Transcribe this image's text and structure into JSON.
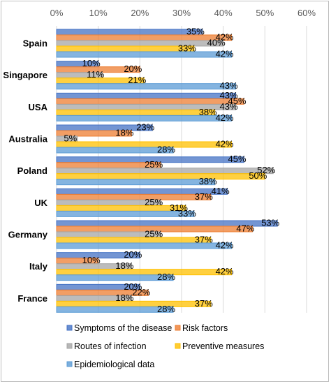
{
  "chart_data": {
    "type": "bar",
    "orientation": "horizontal",
    "categories": [
      "Spain",
      "Singapore",
      "USA",
      "Australia",
      "Poland",
      "UK",
      "Germany",
      "Italy",
      "France"
    ],
    "series": [
      {
        "name": "Symptoms of the disease",
        "color": "#4472C4",
        "values": [
          35,
          10,
          43,
          23,
          45,
          41,
          53,
          20,
          20
        ]
      },
      {
        "name": "Risk factors",
        "color": "#ED7D31",
        "values": [
          42,
          20,
          45,
          18,
          25,
          37,
          47,
          10,
          22
        ]
      },
      {
        "name": "Routes of infection",
        "color": "#A5A5A5",
        "values": [
          40,
          11,
          43,
          5,
          52,
          25,
          25,
          18,
          18
        ]
      },
      {
        "name": "Preventive measures",
        "color": "#FFC000",
        "values": [
          33,
          21,
          38,
          42,
          50,
          31,
          37,
          42,
          37
        ]
      },
      {
        "name": "Epidemiological data",
        "color": "#5B9BD5",
        "values": [
          42,
          43,
          42,
          28,
          38,
          33,
          42,
          28,
          28
        ]
      }
    ],
    "value_suffix": "%",
    "xlim": [
      0,
      60
    ],
    "xticks": [
      "0%",
      "10%",
      "20%",
      "30%",
      "40%",
      "50%",
      "60%"
    ],
    "xaxis_position": "top",
    "grid": true,
    "legend_position": "bottom"
  }
}
